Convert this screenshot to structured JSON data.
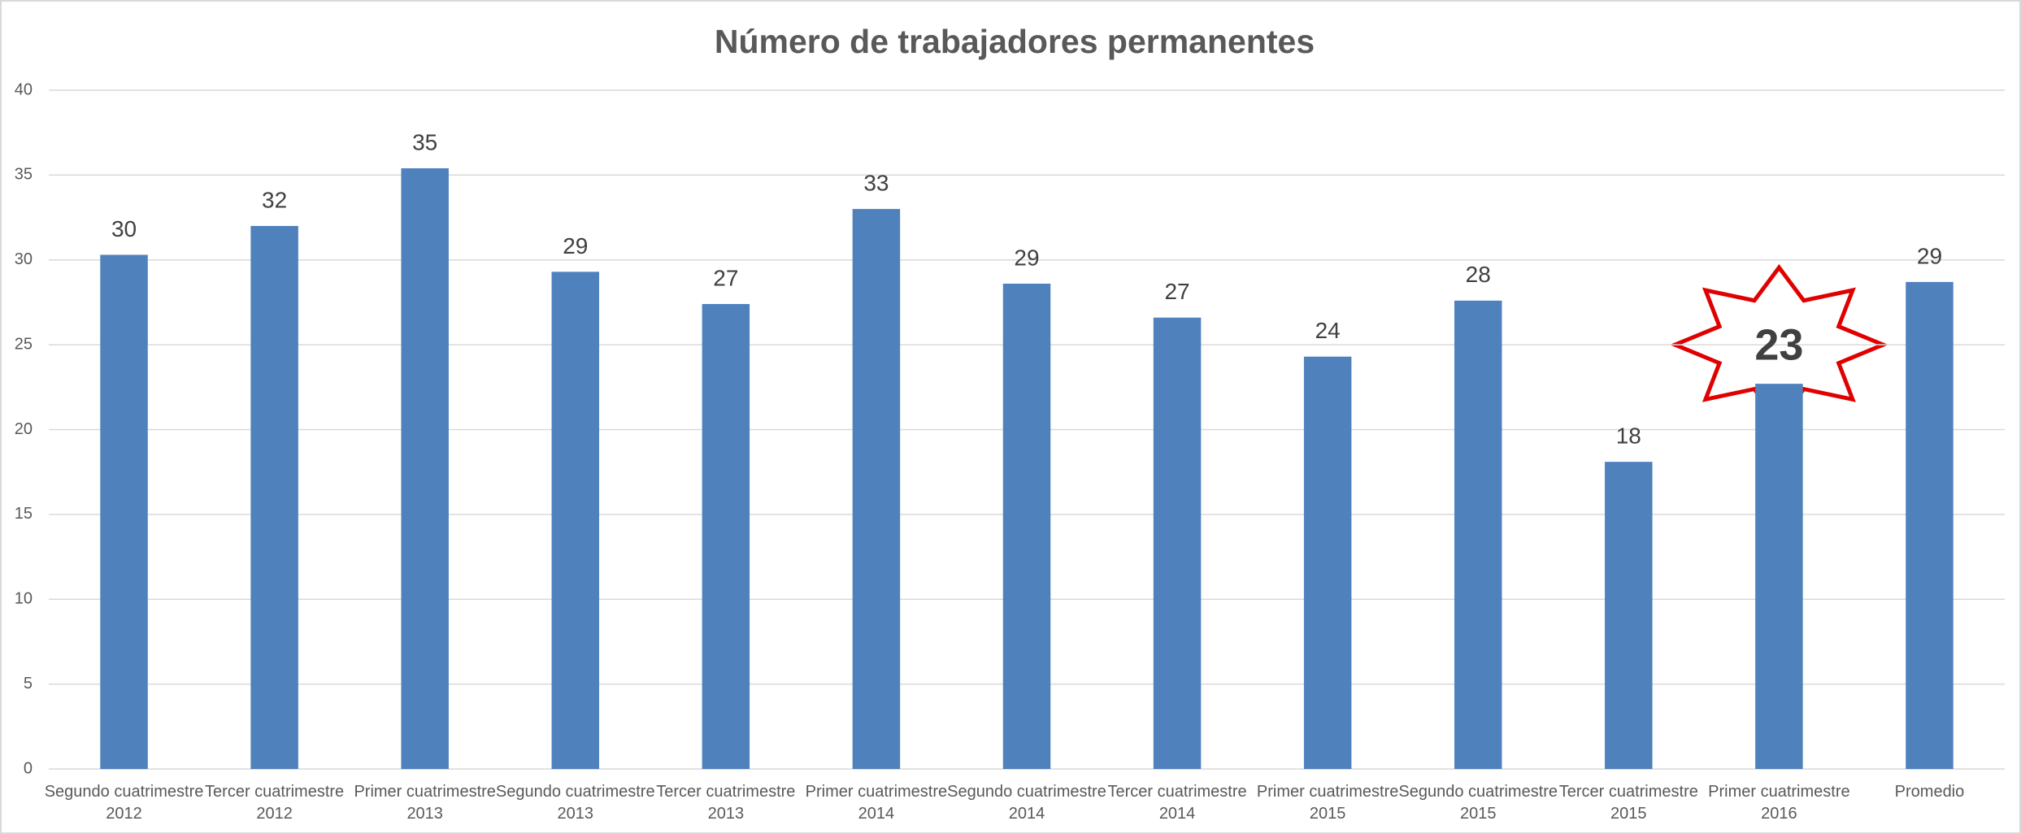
{
  "chart_data": {
    "type": "bar",
    "title": "Número de trabajadores permanentes",
    "categories": [
      [
        "Segundo cuatrimestre",
        "2012"
      ],
      [
        "Tercer cuatrimestre",
        "2012"
      ],
      [
        "Primer cuatrimestre",
        "2013"
      ],
      [
        "Segundo cuatrimestre",
        "2013"
      ],
      [
        "Tercer cuatrimestre",
        "2013"
      ],
      [
        "Primer cuatrimestre",
        "2014"
      ],
      [
        "Segundo cuatrimestre",
        "2014"
      ],
      [
        "Tercer cuatrimestre",
        "2014"
      ],
      [
        "Primer cuatrimestre",
        "2015"
      ],
      [
        "Segundo cuatrimestre",
        "2015"
      ],
      [
        "Tercer cuatrimestre",
        "2015"
      ],
      [
        "Primer cuatrimestre",
        "2016"
      ],
      [
        "Promedio"
      ]
    ],
    "values": [
      30.3,
      32,
      35.4,
      29.3,
      27.4,
      33,
      28.6,
      26.6,
      24.3,
      27.6,
      18.1,
      22.7,
      28.7
    ],
    "value_labels": [
      "30",
      "32",
      "35",
      "29",
      "27",
      "33",
      "29",
      "27",
      "24",
      "28",
      "18",
      "23",
      "29"
    ],
    "color": "#4f81bd",
    "ylim": [
      0,
      40
    ],
    "yticks": [
      0,
      5,
      10,
      15,
      20,
      25,
      30,
      35,
      40
    ],
    "grid": true
  }
}
